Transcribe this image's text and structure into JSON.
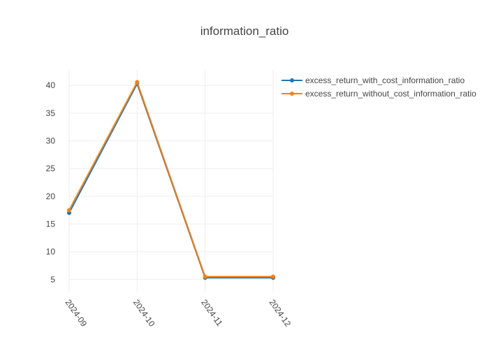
{
  "chart_data": {
    "type": "line",
    "title": "information_ratio",
    "xlabel": "",
    "ylabel": "",
    "categories": [
      "2024-09",
      "2024-10",
      "2024-11",
      "2024-12"
    ],
    "yticks": [
      5,
      10,
      15,
      20,
      25,
      30,
      35,
      40
    ],
    "ylim": [
      2.7,
      42.8
    ],
    "grid": true,
    "legend_position": "top-right",
    "series": [
      {
        "name": "excess_return_with_cost_information_ratio",
        "color": "#1f77b4",
        "values": [
          17.0,
          40.3,
          5.3,
          5.3
        ]
      },
      {
        "name": "excess_return_without_cost_information_ratio",
        "color": "#ff7f0e",
        "values": [
          17.5,
          40.6,
          5.5,
          5.5
        ]
      }
    ]
  }
}
